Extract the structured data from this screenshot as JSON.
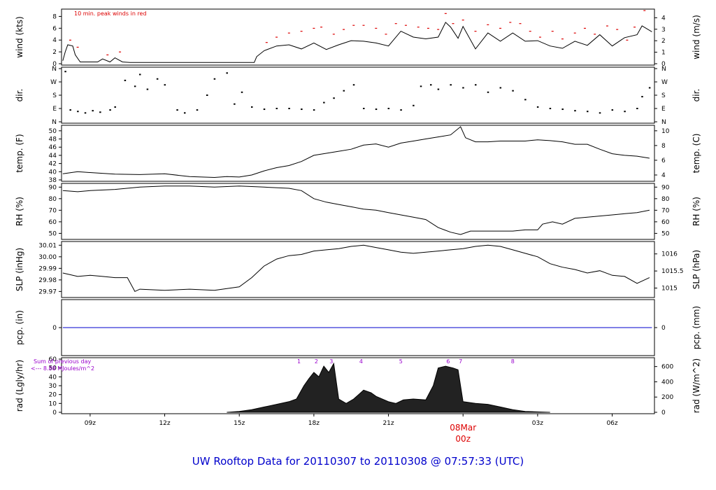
{
  "footer_title": "UW Rooftop Data for 20110307  to  20110308 @ 07:57:33  (UTC)",
  "date_label": "08Mar",
  "date_hour_label": "00z",
  "wind_note": "10 min. peak winds in red",
  "rad_note_line1": "Sum of previous day",
  "rad_note_line2": "<--- 8.88 MJoules/m^2",
  "colors": {
    "line": "#000000",
    "peak": "#dd0000",
    "precip": "#0000cc",
    "note": "#9900cc",
    "date": "#dd0000"
  },
  "chart_data": [
    {
      "id": "wind",
      "type": "line",
      "ylabel_left": "wind (kts)",
      "ylabel_right": "wind (m/s)",
      "ylim": [
        0,
        9
      ],
      "left_ticks": [
        "0",
        "2",
        "4",
        "6",
        "8"
      ],
      "right_ticks": [
        "0",
        "1",
        "2",
        "3",
        "4"
      ],
      "series": [
        {
          "x": [
            7.9,
            8.0,
            8.1,
            8.3,
            8.4,
            8.6,
            9.0,
            9.3,
            9.5,
            9.8,
            10.0,
            10.3,
            10.6,
            11,
            12,
            13,
            14,
            15,
            15.6,
            15.7,
            16.0,
            16.5,
            17.0,
            17.5,
            18,
            18.5,
            19,
            19.5,
            20,
            20.5,
            21,
            21.5,
            22,
            22.5,
            23,
            23.3,
            23.5,
            23.8,
            24.0,
            24.5,
            25,
            25.5,
            26,
            26.5,
            27,
            27.5,
            28,
            28.5,
            29,
            29.5,
            30,
            30.5,
            31,
            31.2,
            31.6
          ],
          "y": [
            0.5,
            2.0,
            3.2,
            3.0,
            1.5,
            0.3,
            0.3,
            0.3,
            0.8,
            0.3,
            1.0,
            0.3,
            0.2,
            0.2,
            0.2,
            0.2,
            0.2,
            0.2,
            0.2,
            1.2,
            2.2,
            3.0,
            3.2,
            2.5,
            3.5,
            2.4,
            3.2,
            3.9,
            3.8,
            3.5,
            3.0,
            5.5,
            4.5,
            4.2,
            4.5,
            7.0,
            6.2,
            4.3,
            6.3,
            2.5,
            5.2,
            3.8,
            5.2,
            3.8,
            3.9,
            3.0,
            2.6,
            3.8,
            3.1,
            4.9,
            3.0,
            4.4,
            4.9,
            6.4,
            5.4
          ]
        }
      ],
      "peaks": {
        "x": [
          8.2,
          8.5,
          9.7,
          10.2,
          16.1,
          16.5,
          17.0,
          17.5,
          18.0,
          18.3,
          18.8,
          19.2,
          19.6,
          20.0,
          20.5,
          20.9,
          21.3,
          21.7,
          22.2,
          22.6,
          23.0,
          23.3,
          23.6,
          24.0,
          24.5,
          25.0,
          25.5,
          25.9,
          26.3,
          26.7,
          27.1,
          27.6,
          28.0,
          28.5,
          28.9,
          29.3,
          29.8,
          30.2,
          30.6,
          30.9,
          31.3
        ],
        "y": [
          4.0,
          2.8,
          1.5,
          2.0,
          3.6,
          4.5,
          5.2,
          5.5,
          6.0,
          6.2,
          5.0,
          5.8,
          6.5,
          6.5,
          6.0,
          5.0,
          6.8,
          6.5,
          6.2,
          6.0,
          5.8,
          8.5,
          6.8,
          7.4,
          5.5,
          6.6,
          6.0,
          7.0,
          6.8,
          5.5,
          4.5,
          5.5,
          4.2,
          5.2,
          6.0,
          5.0,
          6.4,
          5.8,
          4.0,
          6.2,
          9.0
        ]
      }
    },
    {
      "id": "dir",
      "type": "scatter",
      "ylabel_left": "dir.",
      "ylabel_right": "dir.",
      "ylim": [
        0,
        360
      ],
      "left_ticks": [
        "N",
        "E",
        "S",
        "W",
        "N"
      ],
      "right_ticks": [
        "N",
        "E",
        "S",
        "W",
        "N"
      ],
      "series": [
        {
          "x": [
            8.0,
            8.2,
            8.5,
            8.8,
            9.1,
            9.4,
            9.8,
            10.0,
            10.4,
            10.8,
            11.0,
            11.3,
            11.7,
            12.0,
            12.5,
            12.8,
            13.3,
            13.7,
            14.0,
            14.5,
            14.8,
            15.1,
            15.5,
            16.0,
            16.5,
            17.0,
            17.5,
            18.0,
            18.4,
            18.8,
            19.2,
            19.6,
            20.0,
            20.5,
            21.0,
            21.5,
            22.0,
            22.3,
            22.7,
            23.0,
            23.5,
            24.0,
            24.5,
            25.0,
            25.5,
            26.0,
            26.5,
            27.0,
            27.5,
            28.0,
            28.5,
            29.0,
            29.5,
            30.0,
            30.5,
            31.0,
            31.2,
            31.5
          ],
          "y": [
            340,
            80,
            70,
            60,
            75,
            65,
            80,
            100,
            280,
            240,
            320,
            220,
            290,
            250,
            80,
            60,
            80,
            180,
            290,
            330,
            120,
            200,
            100,
            85,
            90,
            90,
            85,
            80,
            130,
            160,
            210,
            250,
            90,
            85,
            90,
            80,
            110,
            240,
            250,
            220,
            250,
            230,
            250,
            200,
            230,
            210,
            150,
            100,
            90,
            85,
            75,
            70,
            60,
            80,
            70,
            90,
            170,
            230
          ]
        }
      ]
    },
    {
      "id": "temp",
      "type": "line",
      "ylabel_left": "temp. (F)",
      "ylabel_right": "temp. (C)",
      "ylim": [
        38,
        51
      ],
      "left_ticks": [
        "38",
        "40",
        "42",
        "44",
        "46",
        "48",
        "50"
      ],
      "right_ticks": [
        "4",
        "6",
        "8",
        "10"
      ],
      "series": [
        {
          "x": [
            7.9,
            8.5,
            9.0,
            10.0,
            11.0,
            12.0,
            13.0,
            14.0,
            14.5,
            15.0,
            15.5,
            16.0,
            16.5,
            17.0,
            17.5,
            18.0,
            18.5,
            19.0,
            19.5,
            20.0,
            20.5,
            21.0,
            21.5,
            22.0,
            22.5,
            23.0,
            23.5,
            23.9,
            24.1,
            24.5,
            25.0,
            25.5,
            26.0,
            26.5,
            27.0,
            27.5,
            28.0,
            28.5,
            29.0,
            29.5,
            30.0,
            30.5,
            31.0,
            31.5
          ],
          "y": [
            39.5,
            40.0,
            39.8,
            39.4,
            39.3,
            39.5,
            38.8,
            38.6,
            38.8,
            38.7,
            39.2,
            40.2,
            41.0,
            41.5,
            42.5,
            44.0,
            44.5,
            45.0,
            45.5,
            46.5,
            46.8,
            46.0,
            47.0,
            47.5,
            48.0,
            48.5,
            49.0,
            51.0,
            48.3,
            47.3,
            47.3,
            47.5,
            47.5,
            47.5,
            47.8,
            47.6,
            47.3,
            46.7,
            46.7,
            45.5,
            44.4,
            44.0,
            43.8,
            43.3
          ]
        }
      ]
    },
    {
      "id": "rh",
      "type": "line",
      "ylabel_left": "RH (%)",
      "ylabel_right": "RH (%)",
      "ylim": [
        46,
        92
      ],
      "left_ticks": [
        "50",
        "60",
        "70",
        "80",
        "90"
      ],
      "right_ticks": [
        "50",
        "60",
        "70",
        "80",
        "90"
      ],
      "series": [
        {
          "x": [
            7.9,
            8.5,
            9.0,
            10.0,
            11.0,
            12.0,
            13.0,
            14.0,
            15.0,
            16.0,
            17.0,
            17.5,
            18.0,
            18.5,
            19.0,
            19.5,
            20.0,
            20.5,
            21.0,
            21.5,
            22.0,
            22.5,
            23.0,
            23.5,
            23.9,
            24.3,
            25.0,
            25.5,
            26.0,
            26.5,
            27.0,
            27.2,
            27.6,
            28.0,
            28.5,
            29.0,
            29.5,
            30.0,
            30.5,
            31.0,
            31.5
          ],
          "y": [
            87,
            86,
            87,
            88,
            90,
            91,
            91,
            90,
            91,
            90,
            89,
            87,
            80,
            77,
            75,
            73,
            71,
            70,
            68,
            66,
            64,
            62,
            55,
            51,
            49,
            52,
            52,
            52,
            52,
            53,
            53,
            58,
            60,
            58,
            63,
            64,
            65,
            66,
            67,
            68,
            70
          ]
        }
      ]
    },
    {
      "id": "slp",
      "type": "line",
      "ylabel_left": "SLP (inHg)",
      "ylabel_right": "SLP (hPa)",
      "ylim": [
        29.966,
        30.012
      ],
      "left_ticks": [
        "29.97",
        "29.98",
        "29.99",
        "30.00",
        "30.01"
      ],
      "right_ticks": [
        "1015",
        "1015.5",
        "1016"
      ],
      "series": [
        {
          "x": [
            7.9,
            8.5,
            9.0,
            9.5,
            10.0,
            10.5,
            10.8,
            11.0,
            12.0,
            13.0,
            14.0,
            15.0,
            15.5,
            16.0,
            16.5,
            17.0,
            17.5,
            18.0,
            18.5,
            19.0,
            19.5,
            20.0,
            20.5,
            21.0,
            21.5,
            22.0,
            22.5,
            23.0,
            23.5,
            24.0,
            24.5,
            25.0,
            25.5,
            26.0,
            26.5,
            27.0,
            27.5,
            28.0,
            28.5,
            29.0,
            29.5,
            30.0,
            30.5,
            31.0,
            31.5
          ],
          "y": [
            29.986,
            29.983,
            29.984,
            29.983,
            29.982,
            29.982,
            29.97,
            29.972,
            29.971,
            29.972,
            29.971,
            29.974,
            29.982,
            29.992,
            29.998,
            30.001,
            30.002,
            30.005,
            30.006,
            30.007,
            30.009,
            30.01,
            30.008,
            30.006,
            30.004,
            30.003,
            30.004,
            30.005,
            30.006,
            30.007,
            30.009,
            30.01,
            30.009,
            30.006,
            30.003,
            30.0,
            29.994,
            29.991,
            29.989,
            29.986,
            29.988,
            29.984,
            29.983,
            29.977,
            29.982
          ]
        }
      ]
    },
    {
      "id": "pcp",
      "type": "line",
      "ylabel_left": "pcp. (in)",
      "ylabel_right": "pcp. (mm)",
      "ylim": [
        -1,
        1
      ],
      "left_ticks": [
        "0"
      ],
      "right_ticks": [
        "0"
      ],
      "series": [
        {
          "x": [
            7.9,
            31.6
          ],
          "y": [
            0,
            0
          ]
        }
      ]
    },
    {
      "id": "rad",
      "type": "area",
      "ylabel_left": "rad (Lgly/hr)",
      "ylabel_right": "rad (W/m^2)",
      "ylim": [
        0,
        60
      ],
      "left_ticks": [
        "0",
        "10",
        "20",
        "30",
        "40",
        "50",
        "60"
      ],
      "right_ticks": [
        "0",
        "200",
        "400",
        "600"
      ],
      "series": [
        {
          "x": [
            14.5,
            15.0,
            15.5,
            16.0,
            16.5,
            17.0,
            17.3,
            17.6,
            17.8,
            18.0,
            18.2,
            18.4,
            18.6,
            18.8,
            19.0,
            19.3,
            19.6,
            19.8,
            20.0,
            20.3,
            20.5,
            21.0,
            21.3,
            21.6,
            22.0,
            22.5,
            22.8,
            23.0,
            23.3,
            23.6,
            23.8,
            24.0,
            24.5,
            25.0,
            25.5,
            26.0,
            26.5,
            27.0,
            27.5
          ],
          "y": [
            0,
            1,
            3,
            6,
            9,
            12,
            15,
            30,
            38,
            45,
            40,
            52,
            45,
            55,
            15,
            10,
            15,
            20,
            25,
            22,
            18,
            12,
            10,
            14,
            15,
            14,
            30,
            50,
            52,
            50,
            48,
            12,
            10,
            9,
            6,
            3,
            1,
            0.5,
            0
          ]
        }
      ],
      "event_labels": [
        {
          "text": "1",
          "x": 17.4
        },
        {
          "text": "2",
          "x": 18.1
        },
        {
          "text": "3",
          "x": 18.7
        },
        {
          "text": "4",
          "x": 19.9
        },
        {
          "text": "5",
          "x": 21.5
        },
        {
          "text": "6",
          "x": 23.4
        },
        {
          "text": "7",
          "x": 23.9
        },
        {
          "text": "8",
          "x": 26.0
        }
      ]
    }
  ],
  "x_axis": {
    "xlim": [
      7.85,
      31.7
    ],
    "tick_hours": [
      9,
      12,
      15,
      18,
      21,
      24,
      27,
      30
    ],
    "tick_labels": [
      "09z",
      "12z",
      "15z",
      "18z",
      "21z",
      "",
      "03z",
      "06z"
    ]
  }
}
